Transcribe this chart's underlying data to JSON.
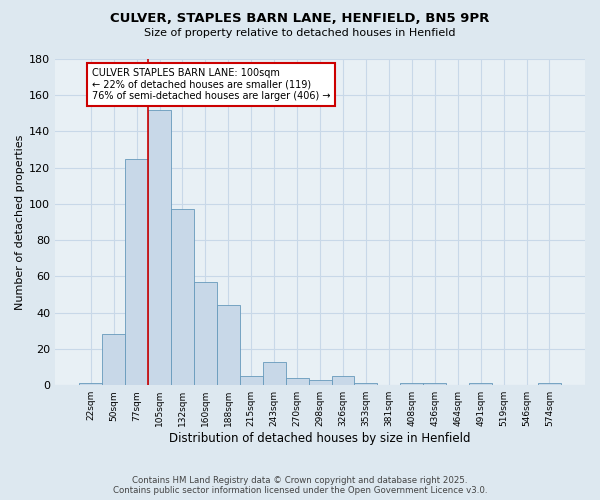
{
  "title": "CULVER, STAPLES BARN LANE, HENFIELD, BN5 9PR",
  "subtitle": "Size of property relative to detached houses in Henfield",
  "xlabel": "Distribution of detached houses by size in Henfield",
  "ylabel": "Number of detached properties",
  "categories": [
    "22sqm",
    "50sqm",
    "77sqm",
    "105sqm",
    "132sqm",
    "160sqm",
    "188sqm",
    "215sqm",
    "243sqm",
    "270sqm",
    "298sqm",
    "326sqm",
    "353sqm",
    "381sqm",
    "408sqm",
    "436sqm",
    "464sqm",
    "491sqm",
    "519sqm",
    "546sqm",
    "574sqm"
  ],
  "values": [
    1,
    28,
    125,
    152,
    97,
    57,
    44,
    5,
    13,
    4,
    3,
    5,
    1,
    0,
    1,
    1,
    0,
    1,
    0,
    0,
    1
  ],
  "bar_color": "#c8d8e8",
  "bar_edge_color": "#6699bb",
  "property_line_x": 2.5,
  "annotation_line1": "CULVER STAPLES BARN LANE: 100sqm",
  "annotation_line2": "← 22% of detached houses are smaller (119)",
  "annotation_line3": "76% of semi-detached houses are larger (406) →",
  "annotation_box_color": "#ffffff",
  "annotation_box_edge_color": "#cc0000",
  "grid_color": "#c8d8e8",
  "background_color": "#dde8f0",
  "plot_bg_color": "#e8f0f5",
  "ylim": [
    0,
    180
  ],
  "yticks": [
    0,
    20,
    40,
    60,
    80,
    100,
    120,
    140,
    160,
    180
  ],
  "footer_line1": "Contains HM Land Registry data © Crown copyright and database right 2025.",
  "footer_line2": "Contains public sector information licensed under the Open Government Licence v3.0."
}
